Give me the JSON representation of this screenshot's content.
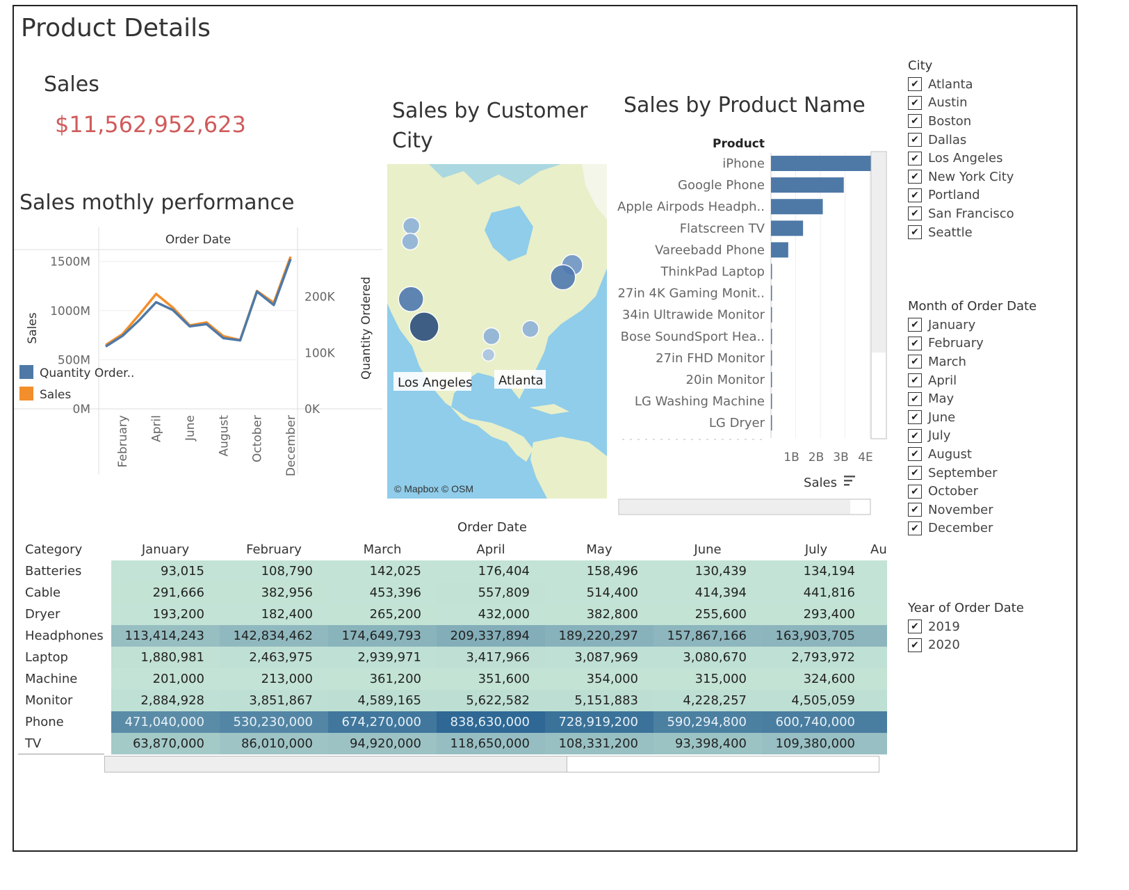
{
  "page": {
    "title": "Product Details"
  },
  "kpi": {
    "title": "Sales",
    "value": "$11,562,952,623"
  },
  "line_chart": {
    "title": "Sales mothly performance",
    "header": "Order Date",
    "left_axis_label": "Sales",
    "right_axis_label": "Quantity Ordered",
    "left_ticks": [
      "1500M",
      "1000M",
      "500M",
      "0M"
    ],
    "right_ticks": [
      "200K",
      "100K",
      "0K"
    ],
    "x_ticks": [
      "February",
      "April",
      "June",
      "August",
      "October",
      "December"
    ],
    "legend": [
      {
        "label": "Quantity Order..",
        "color": "#4e79a7"
      },
      {
        "label": "Sales",
        "color": "#f28e2b"
      }
    ]
  },
  "map": {
    "title": "Sales by Customer City",
    "attribution": "© Mapbox © OSM",
    "labels": [
      "Los Angeles",
      "Atlanta"
    ]
  },
  "bar_chart": {
    "title": "Sales by Product Name",
    "row_header": "Product",
    "x_title": "Sales",
    "x_ticks": [
      "1B",
      "2B",
      "3B",
      "4E"
    ]
  },
  "filters": {
    "city": {
      "title": "City",
      "options": [
        "Atlanta",
        "Austin",
        "Boston",
        "Dallas",
        "Los Angeles",
        "New York City",
        "Portland",
        "San Francisco",
        "Seattle"
      ]
    },
    "month": {
      "title": "Month of Order Date",
      "options": [
        "January",
        "February",
        "March",
        "April",
        "May",
        "June",
        "July",
        "August",
        "September",
        "October",
        "November",
        "December"
      ]
    },
    "year": {
      "title": "Year of Order Date",
      "options": [
        "2019",
        "2020"
      ]
    }
  },
  "crosstab": {
    "top_header": "Order Date",
    "row_header": "Category",
    "columns": [
      "January",
      "February",
      "March",
      "April",
      "May",
      "June",
      "July",
      "Au"
    ],
    "rows": [
      {
        "category": "Batteries",
        "values": [
          "93,015",
          "108,790",
          "142,025",
          "176,404",
          "158,496",
          "130,439",
          "134,194"
        ]
      },
      {
        "category": "Cable",
        "values": [
          "291,666",
          "382,956",
          "453,396",
          "557,809",
          "514,400",
          "414,394",
          "441,816"
        ]
      },
      {
        "category": "Dryer",
        "values": [
          "193,200",
          "182,400",
          "265,200",
          "432,000",
          "382,800",
          "255,600",
          "293,400"
        ]
      },
      {
        "category": "Headphones",
        "values": [
          "113,414,243",
          "142,834,462",
          "174,649,793",
          "209,337,894",
          "189,220,297",
          "157,867,166",
          "163,903,705"
        ]
      },
      {
        "category": "Laptop",
        "values": [
          "1,880,981",
          "2,463,975",
          "2,939,971",
          "3,417,966",
          "3,087,969",
          "3,080,670",
          "2,793,972"
        ]
      },
      {
        "category": "Machine",
        "values": [
          "201,000",
          "213,000",
          "361,200",
          "351,600",
          "354,000",
          "315,000",
          "324,600"
        ]
      },
      {
        "category": "Monitor",
        "values": [
          "2,884,928",
          "3,851,867",
          "4,589,165",
          "5,622,582",
          "5,151,883",
          "4,228,257",
          "4,505,059"
        ]
      },
      {
        "category": "Phone",
        "values": [
          "471,040,000",
          "530,230,000",
          "674,270,000",
          "838,630,000",
          "728,919,200",
          "590,294,800",
          "600,740,000"
        ]
      },
      {
        "category": "TV",
        "values": [
          "63,870,000",
          "86,010,000",
          "94,920,000",
          "118,650,000",
          "108,331,200",
          "93,398,400",
          "109,380,000"
        ]
      }
    ]
  },
  "chart_data": [
    {
      "type": "line",
      "x": [
        "January",
        "February",
        "March",
        "April",
        "May",
        "June",
        "July",
        "August",
        "September",
        "October",
        "November",
        "December"
      ],
      "series": [
        {
          "name": "Sales",
          "axis": "left",
          "color": "#f28e2b",
          "values": [
            650,
            760,
            960,
            1170,
            1030,
            850,
            880,
            740,
            700,
            1200,
            1080,
            1550
          ]
        },
        {
          "name": "Quantity Ordered",
          "axis": "right",
          "color": "#4e79a7",
          "values": [
            111000,
            130000,
            158000,
            190000,
            176000,
            147000,
            151000,
            126000,
            122000,
            209000,
            185000,
            267000
          ]
        }
      ],
      "y_left_label": "Sales",
      "y_left_unit": "M",
      "ylim_left": [
        0,
        1600
      ],
      "y_right_label": "Quantity Ordered",
      "ylim_right": [
        0,
        280000
      ]
    },
    {
      "type": "bar",
      "orientation": "horizontal",
      "color": "#4e79a7",
      "categories": [
        "iPhone",
        "Google Phone",
        "Apple Airpods Headph..",
        "Flatscreen TV",
        "Vareebadd Phone",
        "ThinkPad Laptop",
        "27in 4K Gaming Monit..",
        "34in Ultrawide Monitor",
        "Bose SoundSport Hea..",
        "27in FHD Monitor",
        "20in Monitor",
        "LG Washing Machine",
        "LG Dryer"
      ],
      "values": [
        4.05,
        2.95,
        2.1,
        1.3,
        0.7,
        0.04,
        0.03,
        0.03,
        0.03,
        0.02,
        0.02,
        0.01,
        0.01
      ],
      "unit": "B",
      "xlabel": "Sales",
      "xlim": [
        0,
        4
      ]
    },
    {
      "type": "scatter",
      "subtype": "map",
      "points": [
        {
          "city": "Los Angeles",
          "lat": 34.05,
          "lon": -118.24,
          "size": 5
        },
        {
          "city": "San Francisco",
          "lat": 37.77,
          "lon": -122.42,
          "size": 4
        },
        {
          "city": "Seattle",
          "lat": 47.61,
          "lon": -122.33,
          "size": 2
        },
        {
          "city": "Portland",
          "lat": 45.52,
          "lon": -122.68,
          "size": 2
        },
        {
          "city": "Dallas",
          "lat": 32.78,
          "lon": -96.8,
          "size": 2
        },
        {
          "city": "Austin",
          "lat": 30.27,
          "lon": -97.74,
          "size": 1
        },
        {
          "city": "Atlanta",
          "lat": 33.75,
          "lon": -84.39,
          "size": 2
        },
        {
          "city": "New York City",
          "lat": 40.71,
          "lon": -74.01,
          "size": 4
        },
        {
          "city": "Boston",
          "lat": 42.36,
          "lon": -71.06,
          "size": 3
        }
      ]
    },
    {
      "type": "heatmap",
      "x": [
        "January",
        "February",
        "March",
        "April",
        "May",
        "June",
        "July"
      ],
      "y": [
        "Batteries",
        "Cable",
        "Dryer",
        "Headphones",
        "Laptop",
        "Machine",
        "Monitor",
        "Phone",
        "TV"
      ],
      "values": [
        [
          93015,
          108790,
          142025,
          176404,
          158496,
          130439,
          134194
        ],
        [
          291666,
          382956,
          453396,
          557809,
          514400,
          414394,
          441816
        ],
        [
          193200,
          182400,
          265200,
          432000,
          382800,
          255600,
          293400
        ],
        [
          113414243,
          142834462,
          174649793,
          209337894,
          189220297,
          157867166,
          163903705
        ],
        [
          1880981,
          2463975,
          2939971,
          3417966,
          3087969,
          3080670,
          2793972
        ],
        [
          201000,
          213000,
          361200,
          351600,
          354000,
          315000,
          324600
        ],
        [
          2884928,
          3851867,
          4589165,
          5622582,
          5151883,
          4228257,
          4505059
        ],
        [
          471040000,
          530230000,
          674270000,
          838630000,
          728919200,
          590294800,
          600740000
        ],
        [
          63870000,
          86010000,
          94920000,
          118650000,
          108331200,
          93398400,
          109380000
        ]
      ]
    }
  ]
}
